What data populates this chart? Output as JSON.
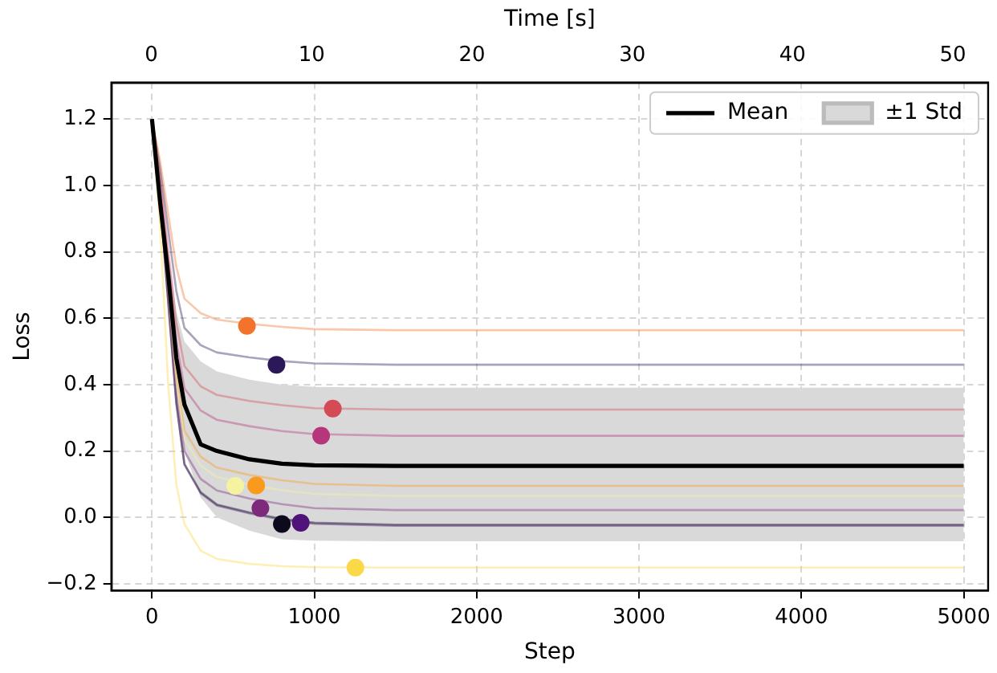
{
  "chart_data": {
    "type": "line",
    "xlabel": "Step",
    "ylabel": "Loss",
    "x2label": "Time [s]",
    "xlim": [
      -250,
      5150
    ],
    "xticks": [
      0,
      1000,
      2000,
      3000,
      4000,
      5000
    ],
    "x2lim": [
      -2.5,
      52.2
    ],
    "x2ticks": [
      0,
      10,
      20,
      30,
      40,
      50
    ],
    "ylim": [
      -0.22,
      1.31
    ],
    "yticks": [
      {
        "value": -0.2,
        "label": "−0.2"
      },
      {
        "value": 0,
        "label": "0.0"
      },
      {
        "value": 0.2,
        "label": "0.2"
      },
      {
        "value": 0.4,
        "label": "0.4"
      },
      {
        "value": 0.6,
        "label": "0.6"
      },
      {
        "value": 0.8,
        "label": "0.8"
      },
      {
        "value": 1,
        "label": "1.0"
      },
      {
        "value": 1.2,
        "label": "1.2"
      }
    ],
    "grid": true,
    "legend": "top right",
    "marker": "none",
    "line_style": "solid",
    "x": [
      0,
      50,
      100,
      150,
      200,
      300,
      400,
      600,
      800,
      1000,
      1500,
      5000
    ],
    "series": [
      {
        "color": "#f3722c",
        "values": [
          1.2,
          1.073,
          0.914,
          0.755,
          0.659,
          0.615,
          0.596,
          0.583,
          0.574,
          0.567,
          0.564,
          0.564
        ]
      },
      {
        "color": "#2a1858",
        "values": [
          1.2,
          1.052,
          0.867,
          0.682,
          0.571,
          0.519,
          0.497,
          0.482,
          0.471,
          0.464,
          0.46,
          0.46
        ]
      },
      {
        "color": "#d44a55",
        "values": [
          1.2,
          1.025,
          0.806,
          0.588,
          0.456,
          0.395,
          0.369,
          0.351,
          0.338,
          0.329,
          0.325,
          0.325
        ]
      },
      {
        "color": "#b5367a",
        "values": [
          1.2,
          1.009,
          0.771,
          0.532,
          0.389,
          0.322,
          0.294,
          0.275,
          0.26,
          0.251,
          0.246,
          0.246
        ]
      },
      {
        "color": "#f6f3a0",
        "values": [
          1.2,
          0.973,
          0.689,
          0.406,
          0.235,
          0.156,
          0.122,
          0.099,
          0.082,
          0.071,
          0.065,
          0.065
        ]
      },
      {
        "color": "#f99a1c",
        "values": [
          1.2,
          0.979,
          0.703,
          0.427,
          0.261,
          0.183,
          0.15,
          0.128,
          0.112,
          0.101,
          0.095,
          0.095
        ]
      },
      {
        "color": "#7d2a7a",
        "values": [
          1.2,
          0.964,
          0.67,
          0.375,
          0.199,
          0.116,
          0.081,
          0.057,
          0.04,
          0.028,
          0.022,
          0.022
        ]
      },
      {
        "color": "#0d0a1e",
        "values": [
          1.2,
          0.956,
          0.65,
          0.345,
          0.161,
          0.076,
          0.039,
          0.015,
          -0.004,
          -0.016,
          -0.022,
          -0.022
        ]
      },
      {
        "color": "#4f137a",
        "values": [
          1.2,
          0.955,
          0.649,
          0.343,
          0.159,
          0.073,
          0.036,
          0.012,
          -0.007,
          -0.019,
          -0.025,
          -0.025
        ]
      },
      {
        "color": "#fbd848",
        "values": [
          1.2,
          0.88,
          0.4,
          0.1,
          -0.02,
          -0.1,
          -0.125,
          -0.14,
          -0.147,
          -0.15,
          -0.151,
          -0.151
        ]
      },
      {
        "name": "±1 Std",
        "type": "area",
        "color": "#d9d9d9",
        "values": [
          null,
          null,
          null,
          null,
          null,
          null,
          null,
          null,
          null,
          null,
          null,
          null
        ],
        "lower": [
          1.19,
          0.92,
          0.66,
          0.34,
          0.2,
          0.06,
          0.0,
          -0.04,
          -0.066,
          -0.07,
          -0.072,
          -0.072
        ],
        "upper": [
          1.21,
          0.98,
          0.8,
          0.62,
          0.53,
          0.47,
          0.44,
          0.415,
          0.4,
          0.393,
          0.391,
          0.391
        ]
      },
      {
        "name": "Mean",
        "color": "#000000",
        "values": [
          1.2,
          0.95,
          0.73,
          0.48,
          0.34,
          0.22,
          0.2,
          0.175,
          0.162,
          0.157,
          0.155,
          0.155
        ]
      },
      {
        "type": "scatter",
        "marker": "circle",
        "x": [
          585,
          767,
          1114,
          1042,
          513,
          642,
          668,
          800,
          916,
          1253
        ],
        "values": [
          0.577,
          0.46,
          0.328,
          0.246,
          0.095,
          0.096,
          0.028,
          -0.02,
          -0.016,
          -0.151
        ],
        "colors": [
          "#f3722c",
          "#2a1858",
          "#d44a55",
          "#b5367a",
          "#f6f3a0",
          "#f99a1c",
          "#7d2a7a",
          "#0d0a1e",
          "#4f137a",
          "#fbd848"
        ]
      }
    ]
  }
}
